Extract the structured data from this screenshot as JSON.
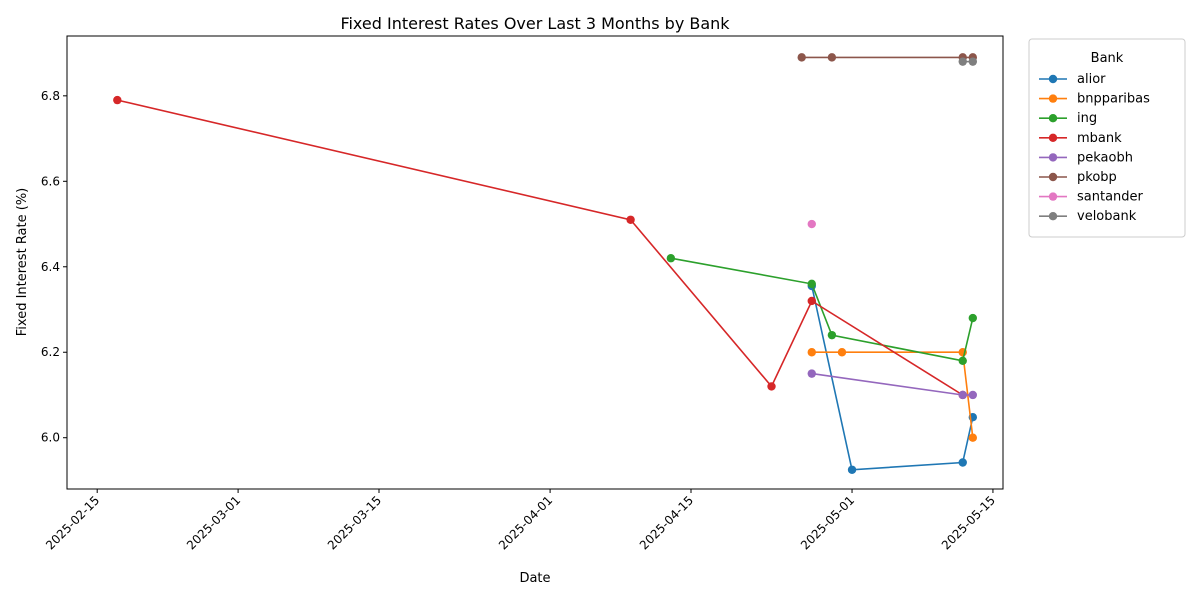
{
  "chart_data": {
    "type": "line",
    "title": "Fixed Interest Rates Over Last 3 Months by Bank",
    "xlabel": "Date",
    "ylabel": "Fixed Interest Rate (%)",
    "legend_title": "Bank",
    "legend_position": "outside-top-right",
    "grid": false,
    "xlim": [
      "2025-02-12",
      "2025-05-16"
    ],
    "ylim": [
      5.88,
      6.94
    ],
    "x_ticks": [
      "2025-02-15",
      "2025-03-01",
      "2025-03-15",
      "2025-04-01",
      "2025-04-15",
      "2025-05-01",
      "2025-05-15"
    ],
    "y_ticks": [
      6.0,
      6.2,
      6.4,
      6.6,
      6.8
    ],
    "series": [
      {
        "name": "alior",
        "color": "#1f77b4",
        "points": [
          [
            "2025-04-27",
            6.355
          ],
          [
            "2025-05-01",
            5.925
          ],
          [
            "2025-05-12",
            5.942
          ],
          [
            "2025-05-13",
            6.048
          ]
        ]
      },
      {
        "name": "bnpparibas",
        "color": "#ff7f0e",
        "points": [
          [
            "2025-04-27",
            6.2
          ],
          [
            "2025-04-30",
            6.2
          ],
          [
            "2025-05-12",
            6.2
          ],
          [
            "2025-05-13",
            6.0
          ]
        ]
      },
      {
        "name": "ing",
        "color": "#2ca02c",
        "points": [
          [
            "2025-04-13",
            6.42
          ],
          [
            "2025-04-27",
            6.36
          ],
          [
            "2025-04-29",
            6.24
          ],
          [
            "2025-05-12",
            6.18
          ],
          [
            "2025-05-13",
            6.28
          ]
        ]
      },
      {
        "name": "mbank",
        "color": "#d62728",
        "points": [
          [
            "2025-02-17",
            6.79
          ],
          [
            "2025-04-09",
            6.51
          ],
          [
            "2025-04-23",
            6.12
          ],
          [
            "2025-04-27",
            6.32
          ],
          [
            "2025-05-12",
            6.1
          ]
        ]
      },
      {
        "name": "pekaobh",
        "color": "#9467bd",
        "points": [
          [
            "2025-04-27",
            6.15
          ],
          [
            "2025-05-12",
            6.1
          ],
          [
            "2025-05-13",
            6.1
          ]
        ]
      },
      {
        "name": "pkobp",
        "color": "#8c564b",
        "points": [
          [
            "2025-04-26",
            6.89
          ],
          [
            "2025-04-29",
            6.89
          ],
          [
            "2025-05-12",
            6.89
          ],
          [
            "2025-05-13",
            6.89
          ]
        ]
      },
      {
        "name": "santander",
        "color": "#e377c2",
        "points": [
          [
            "2025-04-27",
            6.5
          ]
        ]
      },
      {
        "name": "velobank",
        "color": "#7f7f7f",
        "points": [
          [
            "2025-05-12",
            6.88
          ],
          [
            "2025-05-13",
            6.88
          ]
        ]
      }
    ]
  }
}
